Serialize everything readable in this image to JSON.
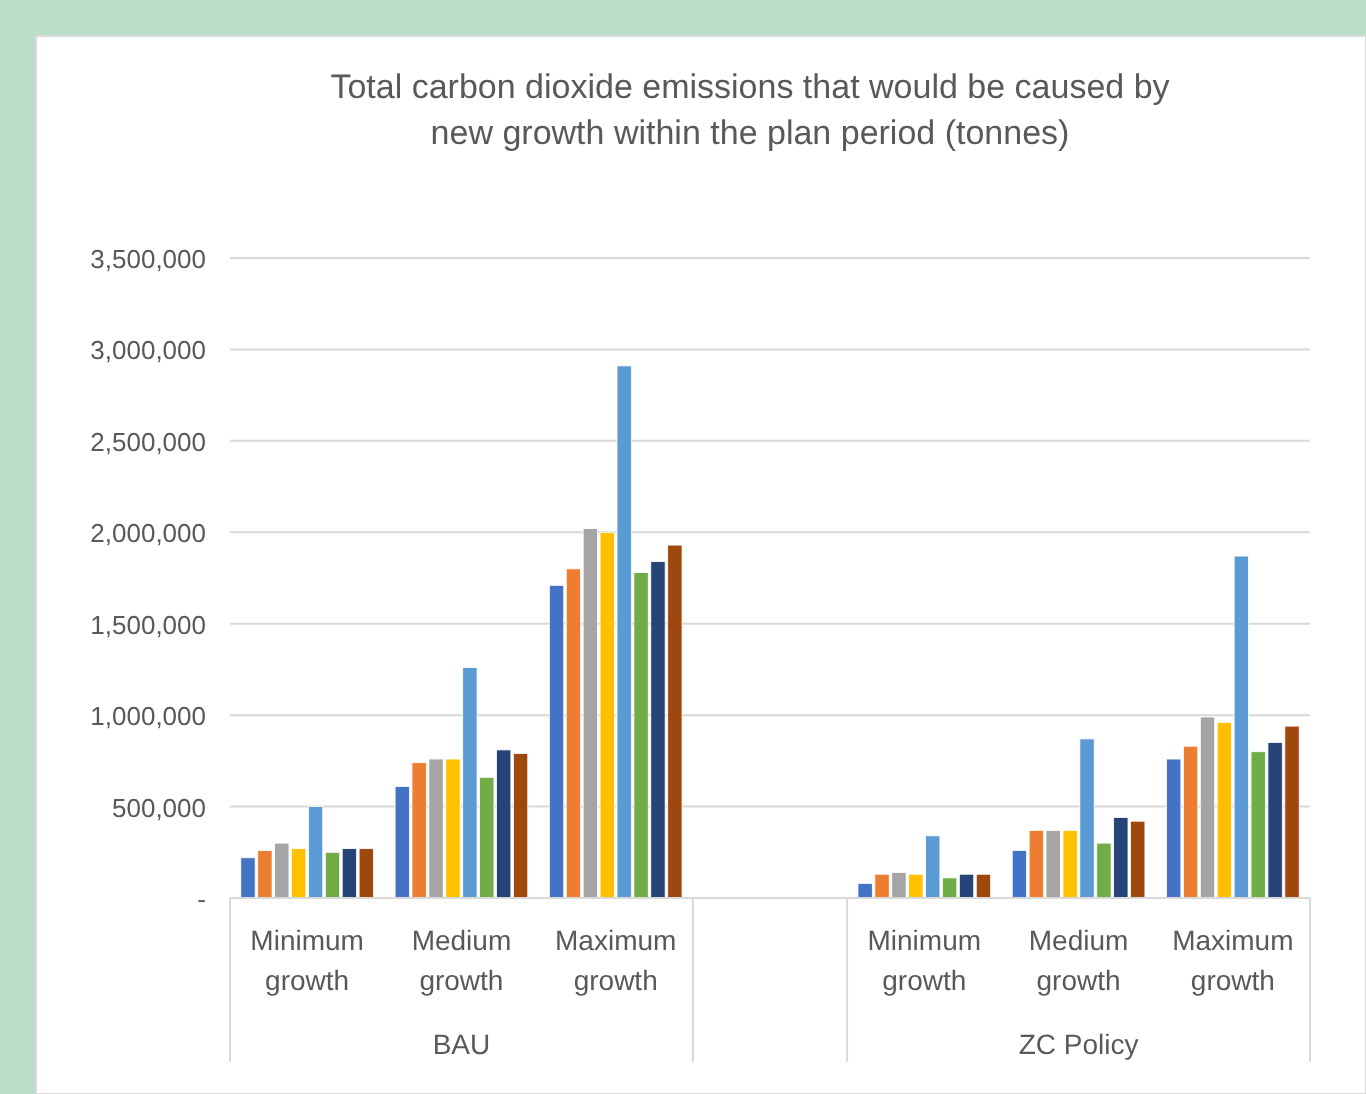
{
  "chart_data": {
    "type": "bar",
    "title": "Total carbon dioxide emissions that would be caused by\nnew growth within the plan period (tonnes)",
    "categories": [
      "Minimum growth",
      "Medium growth",
      "Maximum growth",
      null,
      "Minimum growth",
      "Medium growth",
      "Maximum growth"
    ],
    "series": [
      {
        "color": "#4472c4",
        "values": [
          220000,
          610000,
          1710000,
          null,
          80000,
          260000,
          760000
        ]
      },
      {
        "color": "#ed7d31",
        "values": [
          260000,
          740000,
          1800000,
          null,
          130000,
          370000,
          830000
        ]
      },
      {
        "color": "#a5a5a5",
        "values": [
          300000,
          760000,
          2020000,
          null,
          140000,
          370000,
          990000
        ]
      },
      {
        "color": "#ffc000",
        "values": [
          270000,
          760000,
          2000000,
          null,
          130000,
          370000,
          960000
        ]
      },
      {
        "color": "#5b9bd5",
        "values": [
          500000,
          1260000,
          2910000,
          null,
          340000,
          870000,
          1870000
        ]
      },
      {
        "color": "#70ad47",
        "values": [
          250000,
          660000,
          1780000,
          null,
          110000,
          300000,
          800000
        ]
      },
      {
        "color": "#264478",
        "values": [
          270000,
          810000,
          1840000,
          null,
          130000,
          440000,
          850000
        ]
      },
      {
        "color": "#9e480e",
        "values": [
          270000,
          790000,
          1930000,
          null,
          130000,
          420000,
          940000
        ]
      }
    ],
    "ylim": [
      0,
      3500000
    ],
    "yticks": [
      {
        "value": 0,
        "label": "-"
      },
      {
        "value": 500000,
        "label": "500,000"
      },
      {
        "value": 1000000,
        "label": "1,000,000"
      },
      {
        "value": 1500000,
        "label": "1,500,000"
      },
      {
        "value": 2000000,
        "label": "2,000,000"
      },
      {
        "value": 2500000,
        "label": "2,500,000"
      },
      {
        "value": 3000000,
        "label": "3,000,000"
      },
      {
        "value": 3500000,
        "label": "3,500,000"
      }
    ],
    "grid": "y",
    "annotations": [
      "BAU",
      "ZC Policy"
    ]
  }
}
